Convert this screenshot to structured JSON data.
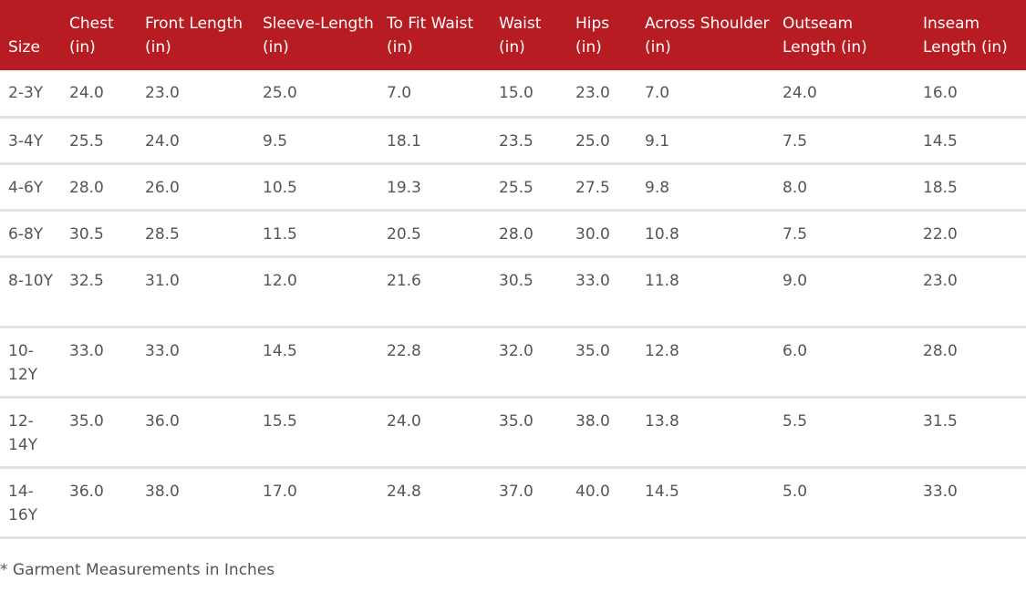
{
  "table": {
    "headers": [
      "Size",
      "Chest (in)",
      "Front Length (in)",
      "Sleeve-Length (in)",
      "To Fit Waist (in)",
      "Waist (in)",
      "Hips (in)",
      "Across Shoulder (in)",
      "Outseam Length (in)",
      "Inseam Length (in)"
    ],
    "rows": [
      [
        "2-3Y",
        "24.0",
        "23.0",
        "25.0",
        "7.0",
        "15.0",
        "23.0",
        "7.0",
        "24.0",
        "16.0"
      ],
      [
        "3-4Y",
        "25.5",
        "24.0",
        "9.5",
        "18.1",
        "23.5",
        "25.0",
        "9.1",
        "7.5",
        "14.5"
      ],
      [
        "4-6Y",
        "28.0",
        "26.0",
        "10.5",
        "19.3",
        "25.5",
        "27.5",
        "9.8",
        "8.0",
        "18.5"
      ],
      [
        "6-8Y",
        "30.5",
        "28.5",
        "11.5",
        "20.5",
        "28.0",
        "30.0",
        "10.8",
        "7.5",
        "22.0"
      ],
      [
        "8-10Y",
        "32.5",
        "31.0",
        "12.0",
        "21.6",
        "30.5",
        "33.0",
        "11.8",
        "9.0",
        "23.0"
      ],
      [
        "10-12Y",
        "33.0",
        "33.0",
        "14.5",
        "22.8",
        "32.0",
        "35.0",
        "12.8",
        "6.0",
        "28.0"
      ],
      [
        "12-14Y",
        "35.0",
        "36.0",
        "15.5",
        "24.0",
        "35.0",
        "38.0",
        "13.8",
        "5.5",
        "31.5"
      ],
      [
        "14-16Y",
        "36.0",
        "38.0",
        "17.0",
        "24.8",
        "37.0",
        "40.0",
        "14.5",
        "5.0",
        "33.0"
      ]
    ]
  },
  "footnote": "* Garment Measurements in Inches",
  "colors": {
    "header_bg": "#b71c22",
    "header_text": "#ffffff",
    "body_text": "#555555",
    "row_divider": "#e2e2e2"
  }
}
